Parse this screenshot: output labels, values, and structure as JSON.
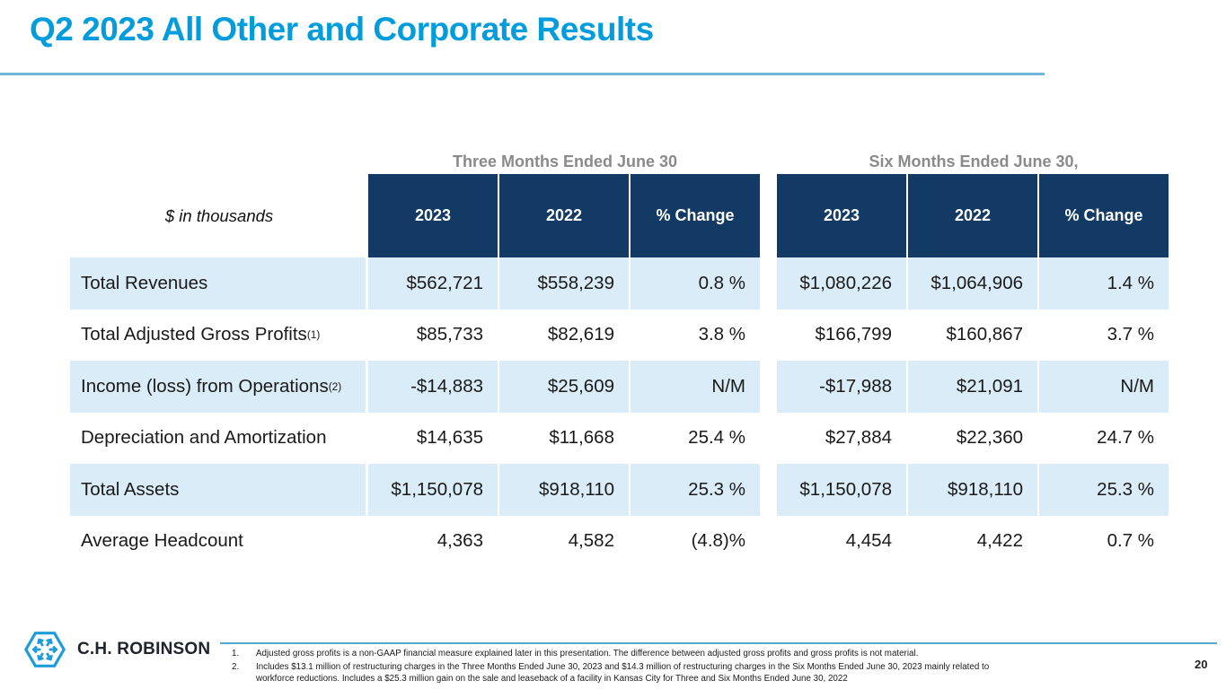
{
  "slide": {
    "title": "Q2 2023 All Other and Corporate Results",
    "page_number": "20"
  },
  "logo": {
    "company": "C.H. ROBINSON",
    "icon": "hexagon-arrows-icon",
    "icon_color": "#1D9CD8"
  },
  "table": {
    "unit_label": "$ in thousands",
    "group_headers": [
      "Three Months Ended June 30",
      "Six Months Ended June 30,"
    ],
    "column_headers": [
      "2023",
      "2022",
      "% Change"
    ],
    "rows": [
      {
        "label": "Total Revenues",
        "sup": "",
        "values": [
          "$562,721",
          "$558,239",
          "0.8 %",
          "$1,080,226",
          "$1,064,906",
          "1.4 %"
        ]
      },
      {
        "label": "Total Adjusted Gross Profits",
        "sup": "(1)",
        "values": [
          "$85,733",
          "$82,619",
          "3.8 %",
          "$166,799",
          "$160,867",
          "3.7 %"
        ]
      },
      {
        "label": "Income (loss) from Operations",
        "sup": "(2)",
        "values": [
          "-$14,883",
          "$25,609",
          "N/M",
          "-$17,988",
          "$21,091",
          "N/M"
        ]
      },
      {
        "label": "Depreciation and Amortization",
        "sup": "",
        "values": [
          "$14,635",
          "$11,668",
          "25.4 %",
          "$27,884",
          "$22,360",
          "24.7 %"
        ]
      },
      {
        "label": "Total Assets",
        "sup": "",
        "values": [
          "$1,150,078",
          "$918,110",
          "25.3 %",
          "$1,150,078",
          "$918,110",
          "25.3 %"
        ]
      },
      {
        "label": "Average Headcount",
        "sup": "",
        "values": [
          "4,363",
          "4,582",
          "(4.8)%",
          "4,454",
          "4,422",
          "0.7 %"
        ]
      }
    ]
  },
  "footnotes": {
    "items": [
      {
        "num": "1.",
        "text": "Adjusted gross profits is a non-GAAP financial measure explained later in this presentation. The difference between adjusted gross profits and gross profits is not material."
      },
      {
        "num": "2.",
        "text": "Includes $13.1 million of restructuring charges in the Three Months Ended June 30, 2023 and $14.3 million of restructuring charges in the Six Months Ended June 30, 2023 mainly related to\nworkforce reductions. Includes a $25.3 million gain on the sale and leaseback of a facility in Kansas City for Three and Six Months Ended June 30, 2022"
      }
    ]
  },
  "colors": {
    "title_blue": "#009CDB",
    "rule_blue": "#71B8D8",
    "header_navy": "#123A64",
    "row_light_blue": "#D9ECF7",
    "group_header_gray": "#8A8A8A",
    "footnote_rule_blue": "#54A8CC"
  }
}
